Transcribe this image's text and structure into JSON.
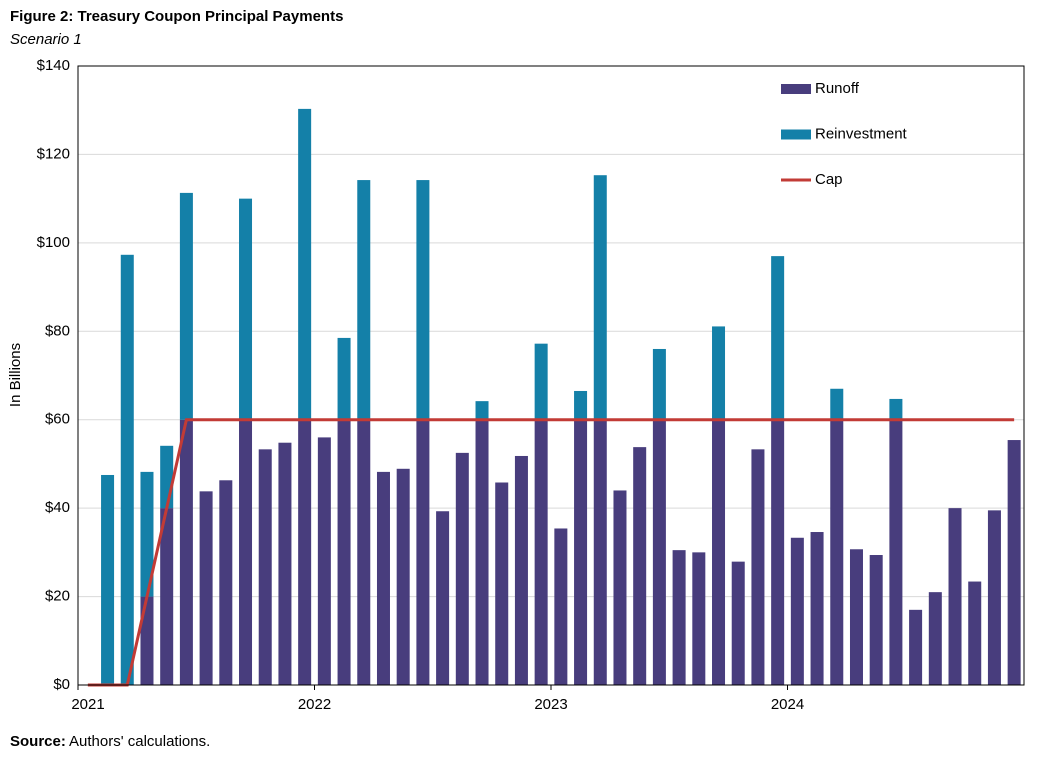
{
  "chart_data": {
    "type": "bar",
    "stacked": true,
    "title": "Figure 2: Treasury Coupon Principal Payments",
    "subtitle": "Scenario 1",
    "y_label": "In Billions",
    "source_label": "Source:",
    "source_text": "Authors' calculations.",
    "categories": [
      "2021",
      null,
      null,
      null,
      null,
      null,
      null,
      null,
      null,
      null,
      null,
      null,
      "2022",
      null,
      null,
      null,
      null,
      null,
      null,
      null,
      null,
      null,
      null,
      null,
      "2023",
      null,
      null,
      null,
      null,
      null,
      null,
      null,
      null,
      null,
      null,
      null,
      "2024",
      null,
      null,
      null,
      null,
      null,
      null,
      null,
      null,
      null,
      null,
      null
    ],
    "series": [
      {
        "name": "Runoff",
        "color": "#483d7d",
        "values": [
          0,
          0,
          0,
          20,
          40,
          60,
          43.8,
          46.3,
          60,
          53.3,
          54.8,
          60,
          56,
          60,
          60,
          48.2,
          48.9,
          60,
          39.3,
          52.5,
          60,
          45.8,
          51.8,
          60,
          35.4,
          60,
          60,
          44,
          53.8,
          60,
          30.5,
          30,
          60,
          27.9,
          53.3,
          60,
          33.3,
          34.6,
          60,
          30.7,
          29.4,
          60,
          17,
          21,
          40,
          23.4,
          39.5,
          55.4
        ]
      },
      {
        "name": "Reinvestment",
        "color": "#1480a8",
        "values": [
          0,
          47.5,
          97.3,
          28.2,
          14.1,
          51.3,
          0,
          0,
          50,
          0,
          0,
          70.3,
          0,
          18.5,
          54.2,
          0,
          0,
          54.2,
          0,
          0,
          4.2,
          0,
          0,
          17.2,
          0,
          6.5,
          55.3,
          0,
          0,
          16,
          0,
          0,
          21.1,
          0,
          0,
          37,
          0,
          0,
          7,
          0,
          0,
          4.7,
          0,
          0,
          0,
          0,
          0,
          0
        ]
      },
      {
        "name": "Cap",
        "type": "line",
        "color": "#c23b36",
        "values": [
          0,
          0,
          0,
          20,
          40,
          60,
          60,
          60,
          60,
          60,
          60,
          60,
          60,
          60,
          60,
          60,
          60,
          60,
          60,
          60,
          60,
          60,
          60,
          60,
          60,
          60,
          60,
          60,
          60,
          60,
          60,
          60,
          60,
          60,
          60,
          60,
          60,
          60,
          60,
          60,
          60,
          60,
          60,
          60,
          60,
          60,
          60,
          60
        ]
      }
    ],
    "ylim": [
      0,
      140
    ],
    "yticks": [
      {
        "value": 0,
        "label": "$0"
      },
      {
        "value": 20,
        "label": "$20"
      },
      {
        "value": 40,
        "label": "$40"
      },
      {
        "value": 60,
        "label": "$60"
      },
      {
        "value": 80,
        "label": "$80"
      },
      {
        "value": 100,
        "label": "$100"
      },
      {
        "value": 120,
        "label": "$120"
      },
      {
        "value": 140,
        "label": "$140"
      }
    ],
    "grid": true,
    "legend": "upper right"
  }
}
